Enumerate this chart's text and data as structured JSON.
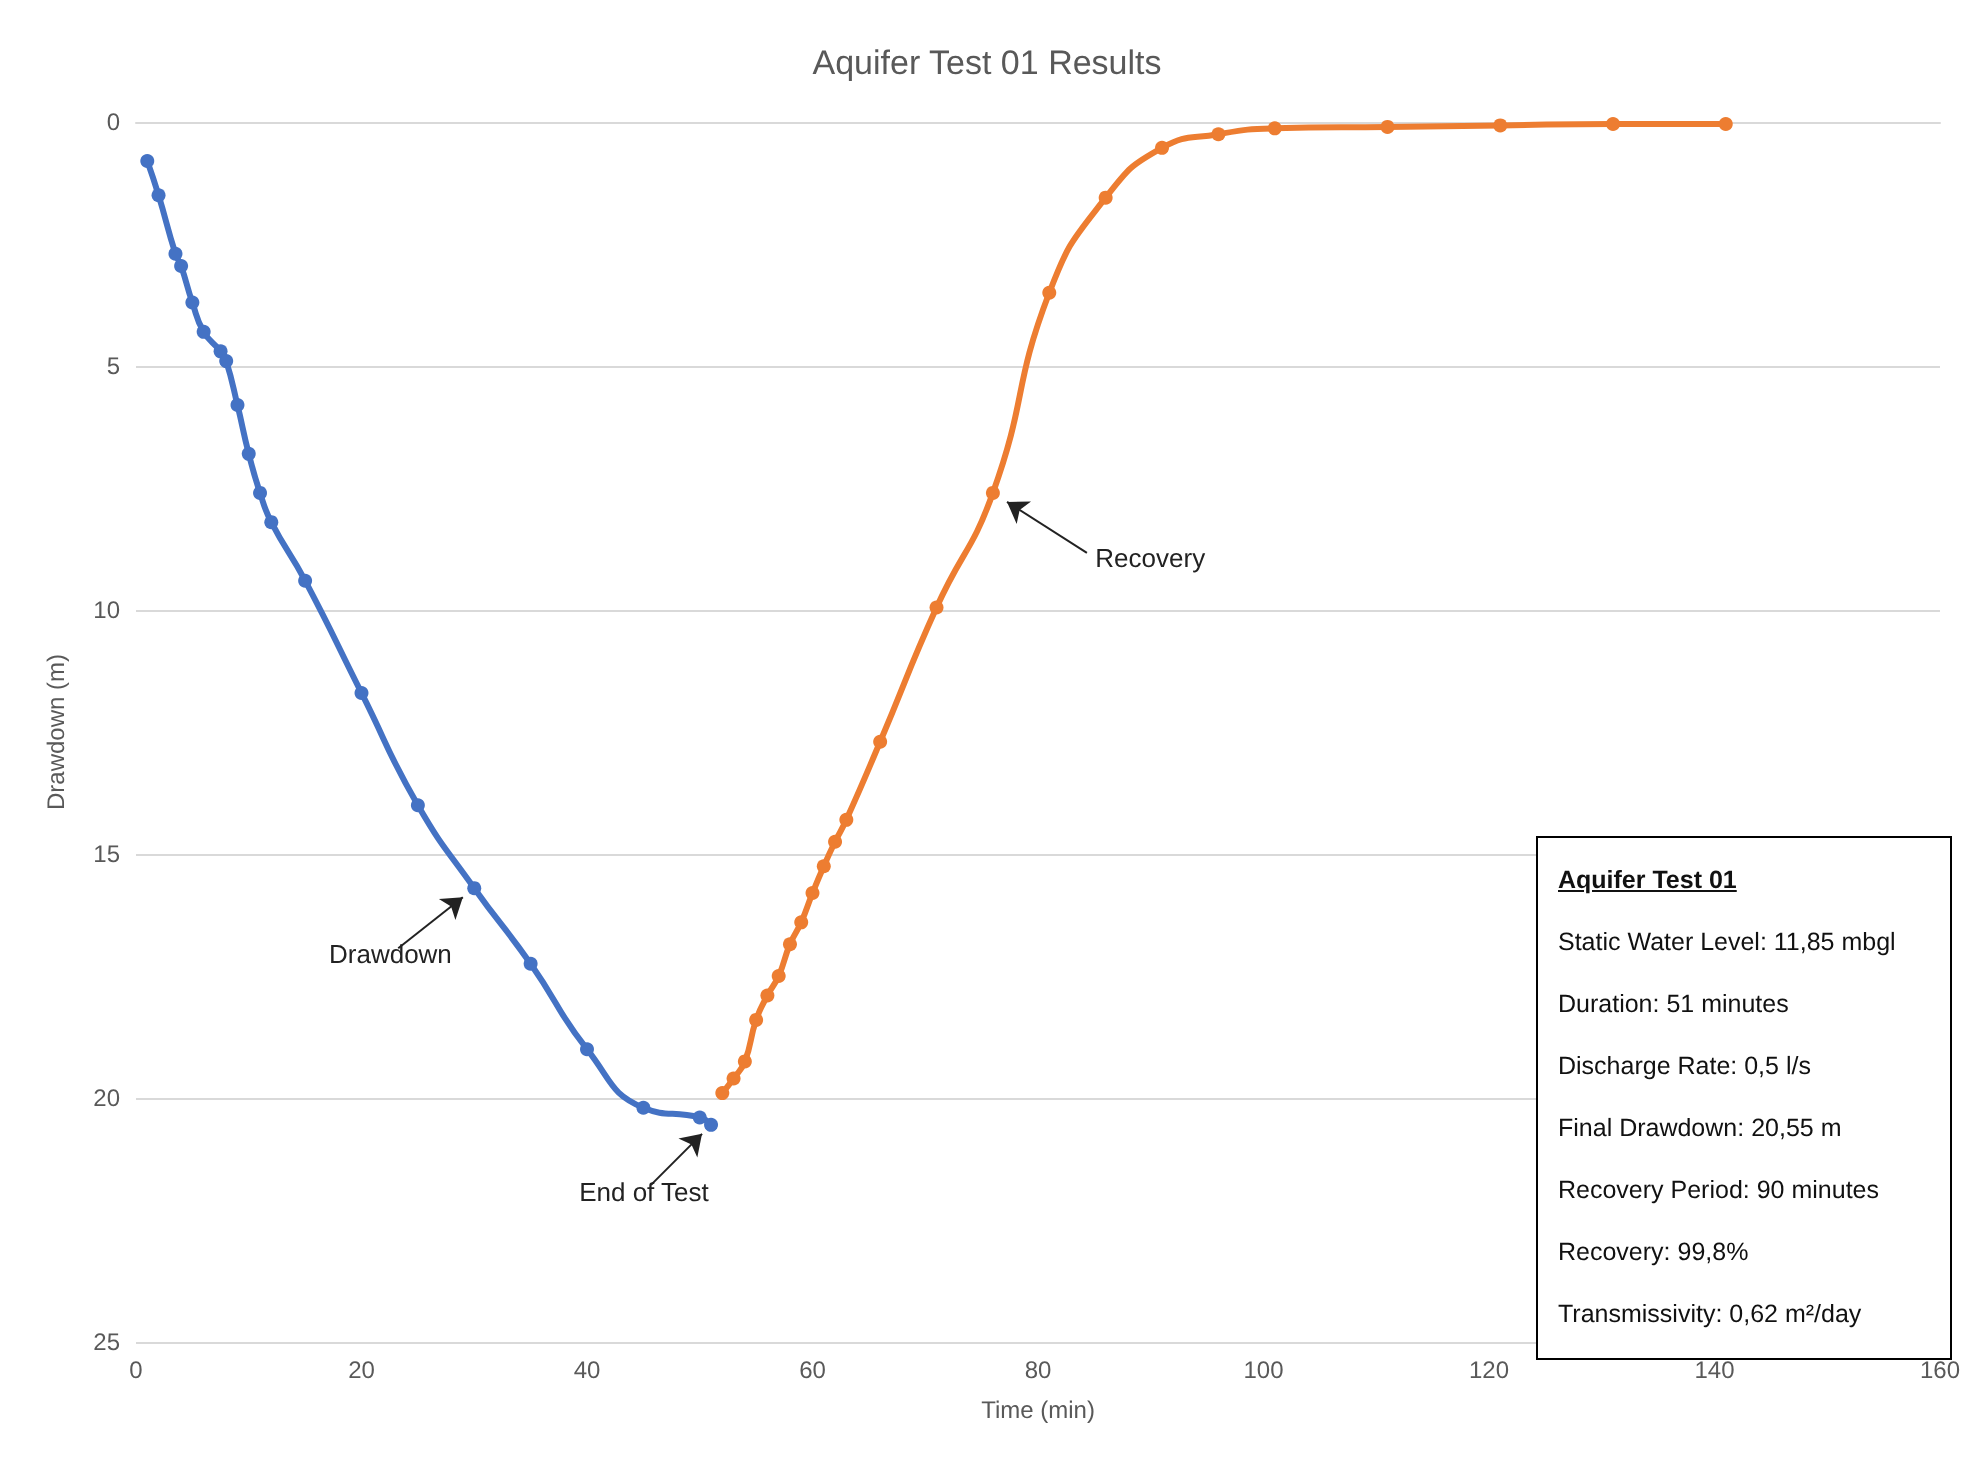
{
  "chart_data": {
    "type": "line",
    "title": "Aquifer Test 01 Results",
    "xlabel": "Time (min)",
    "ylabel": "Drawdown (m)",
    "series": [
      {
        "color": "#4472c4",
        "x": [
          1,
          2,
          3.5,
          4,
          5,
          6,
          7.5,
          8,
          9,
          10,
          11,
          12,
          15,
          20,
          25,
          30,
          35,
          40,
          45,
          50,
          51
        ],
        "values": [
          0.8,
          1.5,
          2.7,
          2.95,
          3.7,
          4.3,
          4.7,
          4.9,
          5.8,
          6.8,
          7.6,
          8.2,
          9.4,
          11.7,
          14.0,
          15.7,
          17.25,
          19.0,
          20.2,
          20.4,
          20.55
        ]
      },
      {
        "color": "#ed7d31",
        "x": [
          52,
          53,
          54,
          55,
          56,
          57,
          58,
          59,
          60,
          61,
          62,
          63,
          66,
          71,
          76,
          81,
          86,
          91,
          96,
          101,
          111,
          121,
          131,
          141
        ],
        "values": [
          19.9,
          19.6,
          19.25,
          18.4,
          17.9,
          17.5,
          16.85,
          16.4,
          15.8,
          15.25,
          14.75,
          14.3,
          12.7,
          9.95,
          7.6,
          3.5,
          1.55,
          0.53,
          0.25,
          0.13,
          0.1,
          0.07,
          0.04,
          0.04
        ]
      }
    ],
    "xlim": [
      0,
      160
    ],
    "xticks": [
      0,
      20,
      40,
      60,
      80,
      100,
      120,
      140,
      160
    ],
    "ylim": [
      25,
      0
    ],
    "yticks": [
      0,
      5,
      10,
      15,
      20,
      25
    ],
    "grid": "y",
    "marker": "circle",
    "line_style": "solid",
    "annotations": [
      {
        "text": "Drawdown",
        "x": 30,
        "y": 15.7
      },
      {
        "text": "End of Test",
        "x": 51,
        "y": 20.55
      },
      {
        "text": "Recovery",
        "x": 76,
        "y": 7.6
      },
      "Aquifer Test 01",
      "Static Water Level: 11,85 mbgl",
      "Duration: 51 minutes",
      "Discharge Rate: 0,5 l/s",
      "Final Drawdown: 20,55 m",
      "Recovery Period: 90 minutes",
      "Recovery: 99,8%",
      "Transmissivity: 0,62 m²/day"
    ]
  }
}
